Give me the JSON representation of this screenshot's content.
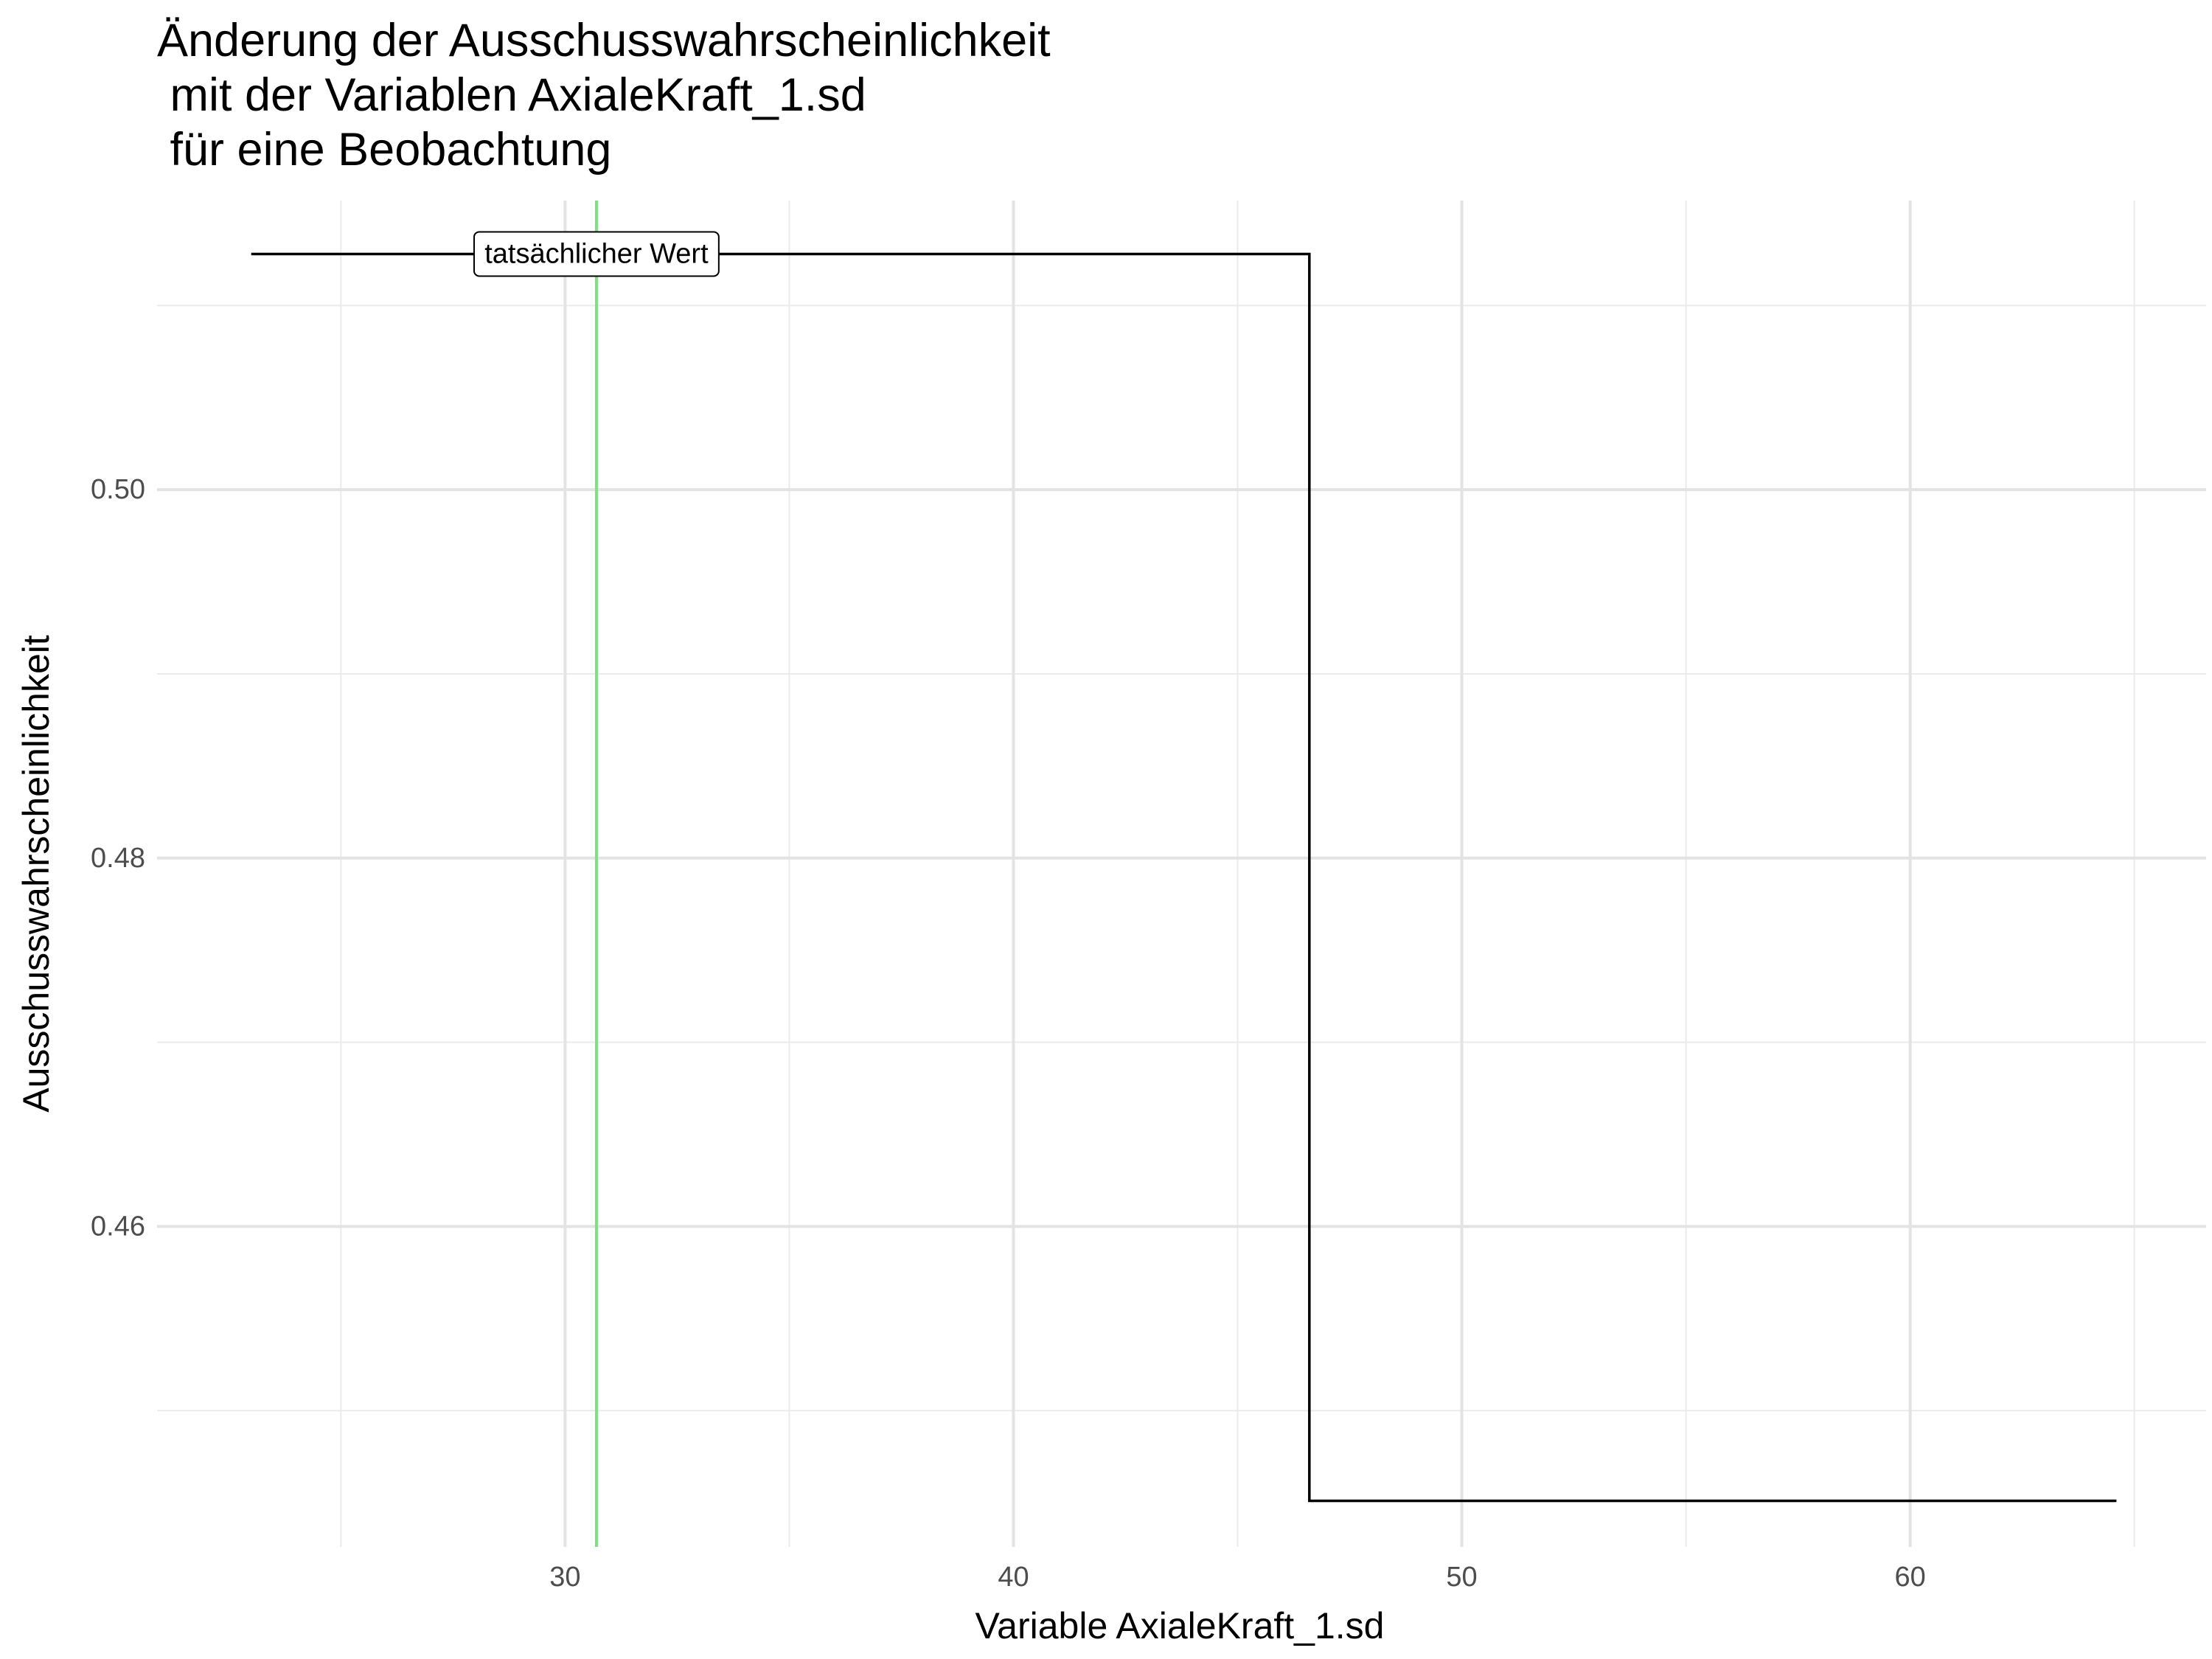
{
  "chart_data": {
    "type": "line",
    "title_lines": [
      "Änderung der Ausschusswahrscheinlichkeit",
      " mit der Variablen AxialeKraft_1.sd",
      " für eine Beobachtung"
    ],
    "xlabel": "Variable AxialeKraft_1.sd",
    "ylabel": "Ausschusswahrscheinlichkeit",
    "xlim": [
      20.9,
      66.6
    ],
    "ylim": [
      0.4426,
      0.5157
    ],
    "x_ticks": [
      30,
      40,
      50,
      60
    ],
    "x_tick_labels": [
      "30",
      "40",
      "50",
      "60"
    ],
    "y_ticks": [
      0.46,
      0.48,
      0.5
    ],
    "y_tick_labels": [
      "0.46",
      "0.48",
      "0.50"
    ],
    "x_minor_grid": [
      25,
      35,
      45,
      55,
      65
    ],
    "y_minor_grid": [
      0.45,
      0.47,
      0.49,
      0.51
    ],
    "grid": true,
    "legend": "none",
    "series": [
      {
        "values_x": [
          23.0,
          46.6,
          46.6,
          64.6
        ],
        "values_y": [
          0.5128,
          0.5128,
          0.4451,
          0.4451
        ],
        "color": "#000000"
      }
    ],
    "reference_line": {
      "x": 30.7,
      "color": "#7fe07f",
      "label": "tatsächlicher Wert",
      "label_y": 0.5128
    }
  }
}
